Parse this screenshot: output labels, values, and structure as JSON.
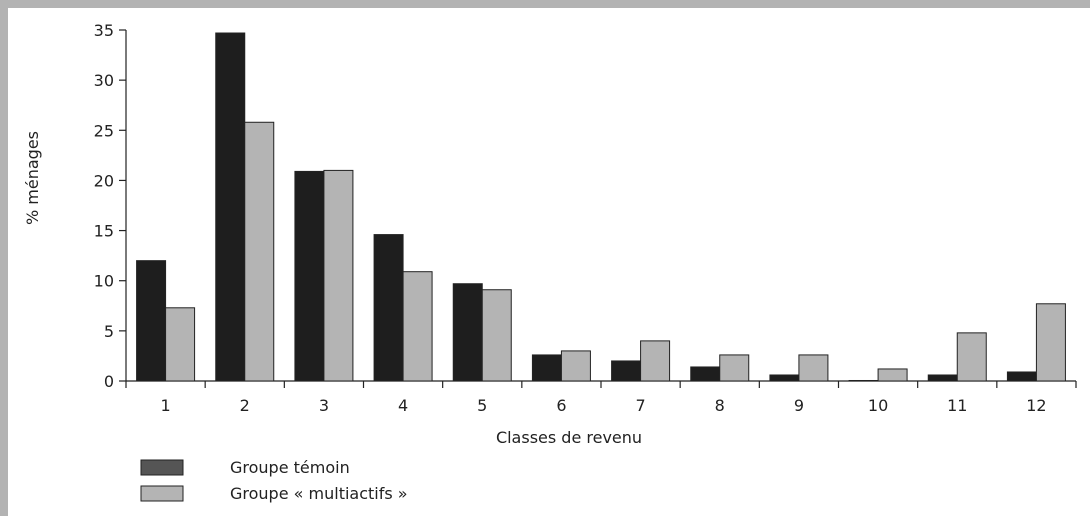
{
  "chart_data": {
    "type": "bar",
    "title": "",
    "xlabel": "Classes de revenu",
    "ylabel": "% ménages",
    "ylim": [
      0,
      35
    ],
    "yticks": [
      "0",
      "5",
      "10",
      "15",
      "20",
      "25",
      "30",
      "35"
    ],
    "categories": [
      "1",
      "2",
      "3",
      "4",
      "5",
      "6",
      "7",
      "8",
      "9",
      "10",
      "11",
      "12"
    ],
    "series": [
      {
        "name": "Groupe témoin",
        "color": "#1e1e1e",
        "values": [
          12.0,
          34.7,
          20.9,
          14.6,
          9.7,
          2.6,
          2.0,
          1.4,
          0.6,
          0.05,
          0.6,
          0.9
        ]
      },
      {
        "name": "Groupe « multiactifs »",
        "color": "#b4b4b4",
        "values": [
          7.3,
          25.8,
          21.0,
          10.9,
          9.1,
          3.0,
          4.0,
          2.6,
          2.6,
          1.2,
          4.8,
          7.7
        ]
      }
    ],
    "legend": {
      "position": "bottom-left",
      "entries": [
        {
          "label": "Groupe témoin",
          "swatch_color": "#555555"
        },
        {
          "label": "Groupe « multiactifs »",
          "swatch_color": "#b4b4b4"
        }
      ]
    },
    "grid": false
  }
}
